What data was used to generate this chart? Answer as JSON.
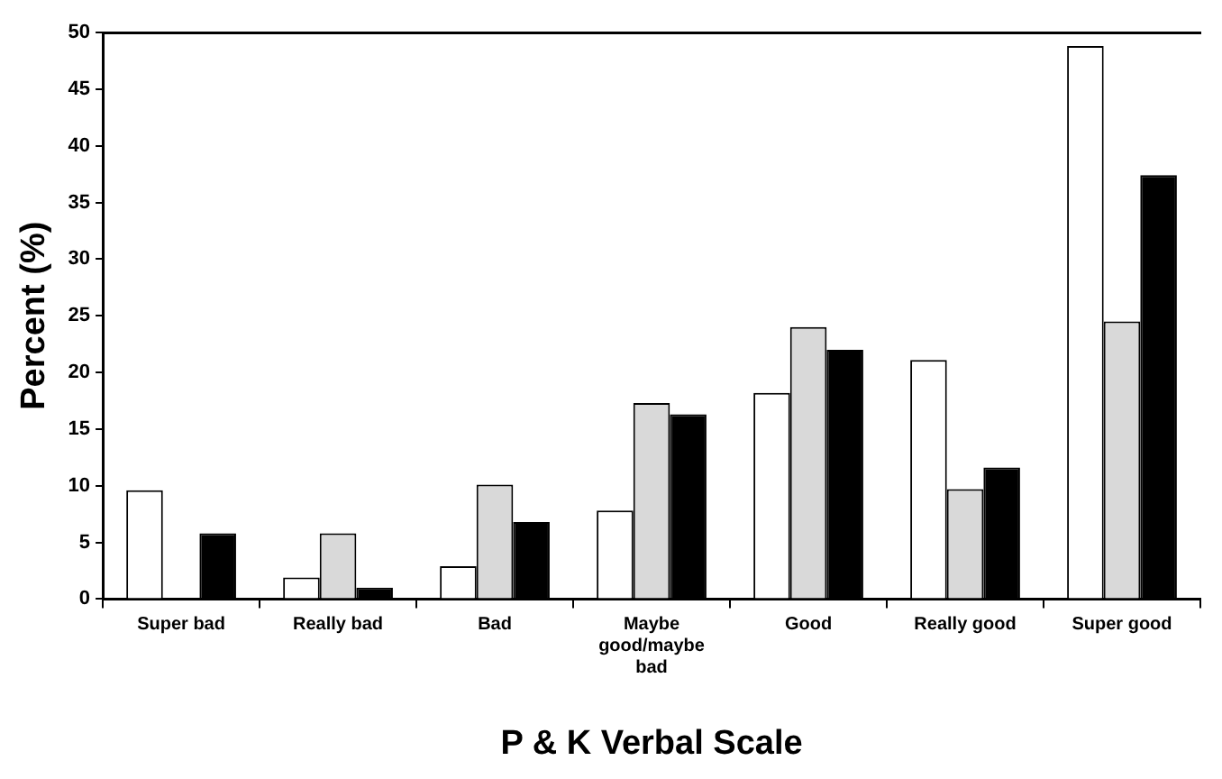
{
  "chart_data": {
    "type": "bar",
    "xlabel": "P & K Verbal Scale",
    "ylabel": "Percent (%)",
    "categories": [
      "Super bad",
      "Really bad",
      "Bad",
      "Maybe good/maybe bad",
      "Good",
      "Really good",
      "Super good"
    ],
    "series": [
      {
        "color": "#ffffff",
        "values": [
          9.6,
          1.9,
          2.9,
          7.8,
          18.2,
          21.1,
          48.8
        ]
      },
      {
        "color": "#d9d9d9",
        "values": [
          0,
          5.8,
          10.1,
          17.3,
          24,
          9.7,
          24.5
        ]
      },
      {
        "color": "#000000",
        "values": [
          5.8,
          1.0,
          6.8,
          16.3,
          22,
          11.6,
          37.4
        ]
      }
    ],
    "ylim": [
      0,
      50
    ],
    "yticks": [
      0,
      5,
      10,
      15,
      20,
      25,
      30,
      35,
      40,
      45,
      50
    ],
    "grid": false,
    "legend": false
  }
}
